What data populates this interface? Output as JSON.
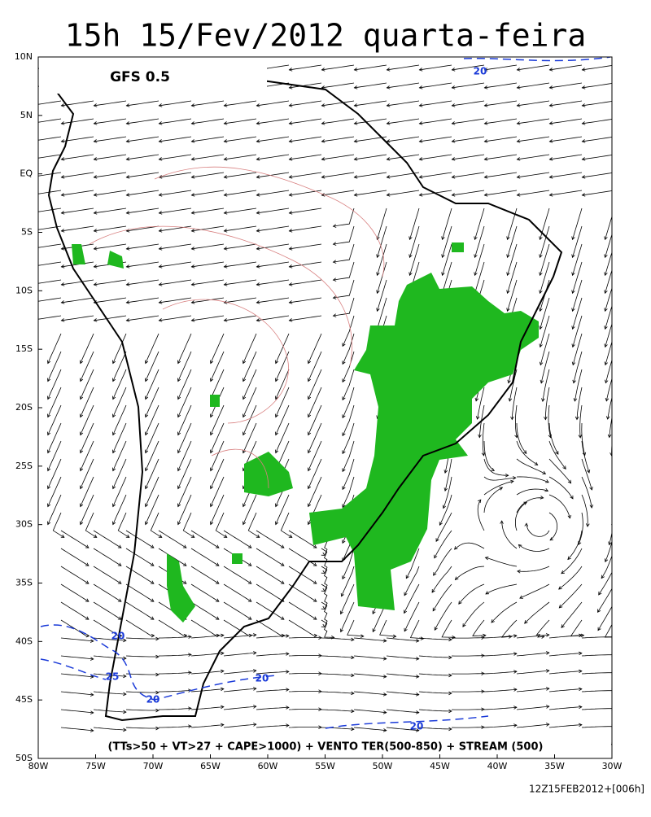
{
  "title": "15h 15/Fev/2012 quarta-feira",
  "model_label": "GFS 0.5",
  "lat_labels": [
    "10N",
    "5N",
    "EQ",
    "5S",
    "10S",
    "15S",
    "20S",
    "25S",
    "30S",
    "35S",
    "40S",
    "45S",
    "50S"
  ],
  "lon_labels": [
    "80W",
    "75W",
    "70W",
    "65W",
    "60W",
    "55W",
    "50W",
    "45W",
    "40W",
    "35W",
    "30W"
  ],
  "caption": "(TTs>50 + VT>27 + CAPE>1000) + VENTO TER(500-850) + STREAM (500)",
  "run_label": "12Z15FEB2012+[006h]",
  "contour_labels": [
    "20",
    "20",
    "25",
    "20",
    "20",
    "20"
  ]
}
